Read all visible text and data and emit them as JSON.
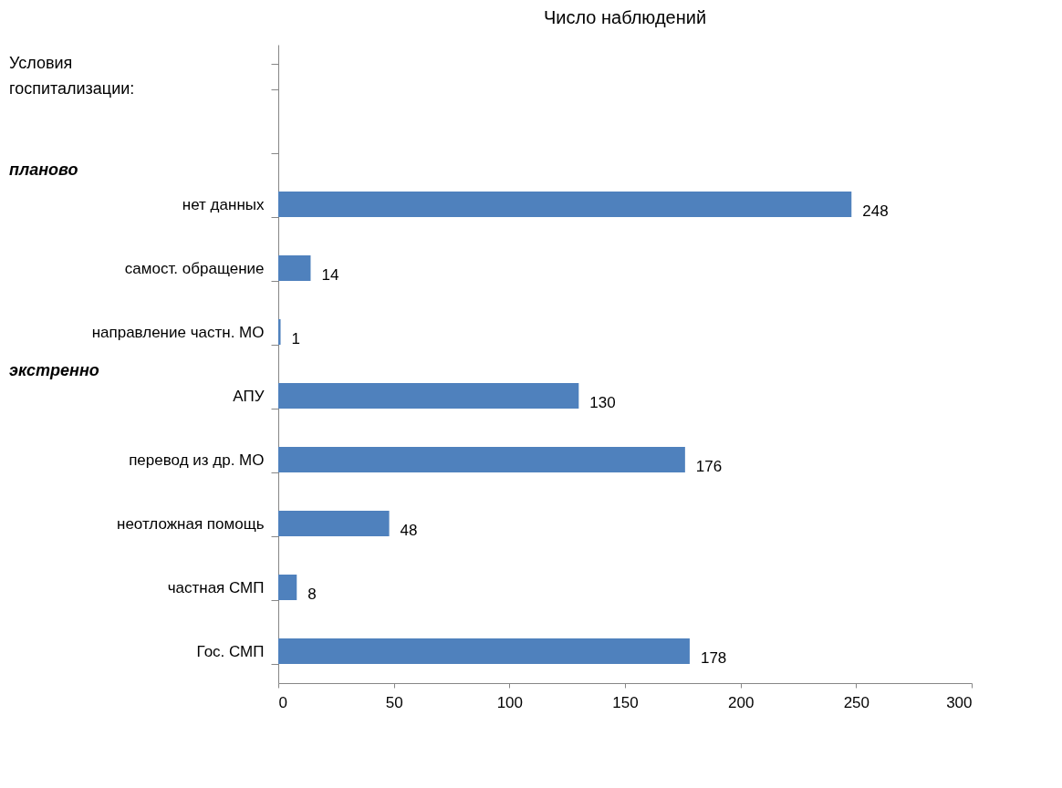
{
  "chart_data": {
    "type": "bar",
    "orientation": "horizontal",
    "title": "Число наблюдений",
    "categories": [
      null,
      null,
      "нет данных",
      "самост. обращение",
      "направление частн. МО",
      "АПУ",
      "перевод из др. МО",
      "неотложная помощь",
      "частная СМП",
      "Гос. СМП"
    ],
    "values": [
      null,
      null,
      248,
      14,
      1,
      130,
      176,
      48,
      8,
      178
    ],
    "color": "#4f81bd",
    "data_labels": true,
    "xlim": [
      0,
      300
    ],
    "xticks": [
      0,
      50,
      100,
      150,
      200,
      250,
      300
    ],
    "grid": false,
    "annotations": [
      "Условия госпитализации:",
      "планово",
      "экстренно"
    ]
  }
}
